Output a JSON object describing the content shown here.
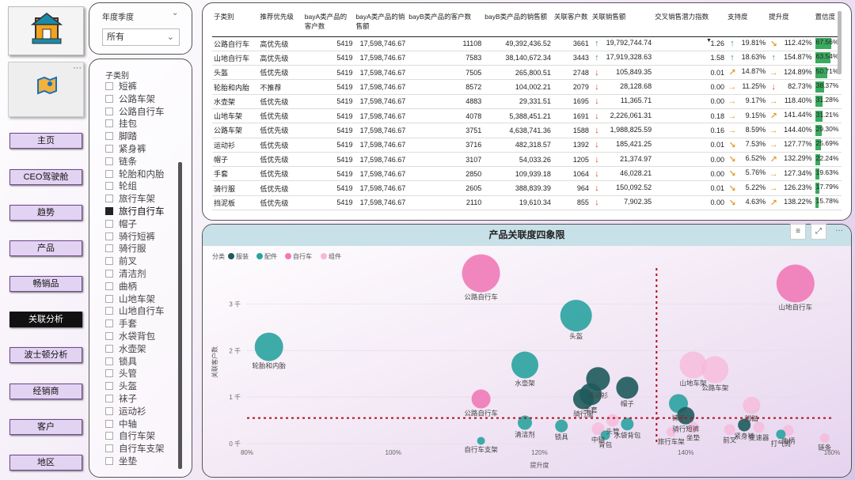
{
  "nav": {
    "items": [
      "主页",
      "CEO驾驶舱",
      "趋势",
      "产品",
      "畅销品",
      "关联分析",
      "波士顿分析",
      "经销商",
      "客户",
      "地区"
    ],
    "active": "关联分析"
  },
  "filter": {
    "title": "年度季度",
    "value": "所有"
  },
  "category_slicer": {
    "title": "子类别",
    "items": [
      "短裤",
      "公路车架",
      "公路自行车",
      "挂包",
      "脚踏",
      "紧身裤",
      "链条",
      "轮胎和内胎",
      "轮组",
      "旅行车架",
      "旅行自行车",
      "帽子",
      "骑行短裤",
      "骑行服",
      "前叉",
      "清洁剂",
      "曲柄",
      "山地车架",
      "山地自行车",
      "手套",
      "水袋背包",
      "水壶架",
      "锁具",
      "头管",
      "头盔",
      "袜子",
      "运动衫",
      "中轴",
      "自行车架",
      "自行车支架",
      "坐垫"
    ],
    "checked": "旅行自行车"
  },
  "table": {
    "headers": [
      "子类别",
      "推荐优先级",
      "bayA类产品的客户数",
      "bayA类产品的销售额",
      "bayB类产品的客户数",
      "bayB类产品的销售额",
      "关联客户数",
      "关联销售额",
      "交叉销售潜力指数",
      "支持度",
      "提升度",
      "置信度"
    ],
    "rows": [
      [
        "公路自行车",
        "高优先级",
        "5419",
        "17,598,746.67",
        "11108",
        "49,392,436.52",
        "3661",
        "up",
        "19,792,744.74",
        "1.26",
        "up",
        "19.81%",
        "se",
        "112.42%",
        "67.56%"
      ],
      [
        "山地自行车",
        "高优先级",
        "5419",
        "17,598,746.67",
        "7583",
        "38,140,672.34",
        "3443",
        "up",
        "17,919,328.63",
        "1.58",
        "up",
        "18.63%",
        "up",
        "154.87%",
        "63.54%"
      ],
      [
        "头盔",
        "低优先级",
        "5419",
        "17,598,746.67",
        "7505",
        "265,800.51",
        "2748",
        "down",
        "105,849.35",
        "0.01",
        "ne",
        "14.87%",
        "rt",
        "124.89%",
        "50.71%"
      ],
      [
        "轮胎和内胎",
        "不推荐",
        "5419",
        "17,598,746.67",
        "8572",
        "104,002.21",
        "2079",
        "down",
        "28,128.68",
        "0.00",
        "rt",
        "11.25%",
        "down",
        "82.73%",
        "38.37%"
      ],
      [
        "水壶架",
        "低优先级",
        "5419",
        "17,598,746.67",
        "4883",
        "29,331.51",
        "1695",
        "down",
        "11,365.71",
        "0.00",
        "rt",
        "9.17%",
        "rt",
        "118.40%",
        "31.28%"
      ],
      [
        "山地车架",
        "低优先级",
        "5419",
        "17,598,746.67",
        "4078",
        "5,388,451.21",
        "1691",
        "down",
        "2,226,061.31",
        "0.18",
        "rt",
        "9.15%",
        "ne",
        "141.44%",
        "31.21%"
      ],
      [
        "公路车架",
        "低优先级",
        "5419",
        "17,598,746.67",
        "3751",
        "4,638,741.36",
        "1588",
        "down",
        "1,988,825.59",
        "0.16",
        "rt",
        "8.59%",
        "rt",
        "144.40%",
        "29.30%"
      ],
      [
        "运动衫",
        "低优先级",
        "5419",
        "17,598,746.67",
        "3716",
        "482,318.57",
        "1392",
        "down",
        "185,421.25",
        "0.01",
        "se",
        "7.53%",
        "rt",
        "127.77%",
        "25.69%"
      ],
      [
        "帽子",
        "低优先级",
        "5419",
        "17,598,746.67",
        "3107",
        "54,033.26",
        "1205",
        "down",
        "21,374.97",
        "0.00",
        "se",
        "6.52%",
        "ne",
        "132.29%",
        "22.24%"
      ],
      [
        "手套",
        "低优先级",
        "5419",
        "17,598,746.67",
        "2850",
        "109,939.18",
        "1064",
        "down",
        "46,028.21",
        "0.00",
        "se",
        "5.76%",
        "rt",
        "127.34%",
        "19.63%"
      ],
      [
        "骑行服",
        "低优先级",
        "5419",
        "17,598,746.67",
        "2605",
        "388,839.39",
        "964",
        "down",
        "150,092.52",
        "0.01",
        "se",
        "5.22%",
        "rt",
        "126.23%",
        "17.79%"
      ],
      [
        "挡泥板",
        "低优先级",
        "5419",
        "17,598,746.67",
        "2110",
        "19,610.34",
        "855",
        "down",
        "7,902.35",
        "0.00",
        "se",
        "4.63%",
        "ne",
        "138.22%",
        "15.78%"
      ]
    ]
  },
  "arrow_icons": {
    "up": "↑",
    "down": "↓",
    "rt": "→",
    "ne": "↗",
    "se": "↘"
  },
  "colors": {
    "up": "#3a9a5c",
    "down": "#d84a2a",
    "warn": "#e0a030",
    "bar": "#3aaa5e"
  },
  "chart_toolbar": {
    "filter_icon": "filter-icon",
    "focus_icon": "focus-mode-icon",
    "more_icon": "more-options-icon"
  },
  "chart_data": {
    "type": "scatter",
    "title": "产品关联度四象限",
    "xlabel": "提升度",
    "ylabel": "关联客户数",
    "xlim": [
      0.8,
      1.6
    ],
    "ylim": [
      0,
      3.5
    ],
    "xticks": [
      "80%",
      "100%",
      "120%",
      "140%",
      "160%"
    ],
    "yticks": [
      "0 千",
      "1 千",
      "2 千",
      "3 千"
    ],
    "legend_title": "分类",
    "legend": [
      {
        "name": "服装",
        "color": "#1e5a5c"
      },
      {
        "name": "配件",
        "color": "#2aa3a0"
      },
      {
        "name": "自行车",
        "color": "#f07ab8"
      },
      {
        "name": "组件",
        "color": "#f7b7d8"
      }
    ],
    "ref_x": 1.36,
    "ref_y": 0.55,
    "points": [
      {
        "label": "公路自行车",
        "x": 1.12,
        "y": 3.66,
        "r": 24,
        "c": "自行车"
      },
      {
        "label": "山地自行车",
        "x": 1.55,
        "y": 3.44,
        "r": 24,
        "c": "自行车"
      },
      {
        "label": "头盔",
        "x": 1.25,
        "y": 2.75,
        "r": 20,
        "c": "配件"
      },
      {
        "label": "轮胎和内胎",
        "x": 0.83,
        "y": 2.08,
        "r": 18,
        "c": "配件"
      },
      {
        "label": "水壶架",
        "x": 1.18,
        "y": 1.69,
        "r": 17,
        "c": "配件"
      },
      {
        "label": "山地车架",
        "x": 1.41,
        "y": 1.69,
        "r": 17,
        "c": "组件"
      },
      {
        "label": "公路车架",
        "x": 1.44,
        "y": 1.59,
        "r": 17,
        "c": "组件"
      },
      {
        "label": "运动衫",
        "x": 1.28,
        "y": 1.39,
        "r": 15,
        "c": "服装"
      },
      {
        "label": "帽子",
        "x": 1.32,
        "y": 1.2,
        "r": 14,
        "c": "服装"
      },
      {
        "label": "手套",
        "x": 1.27,
        "y": 1.06,
        "r": 14,
        "c": "服装"
      },
      {
        "label": "骑行服",
        "x": 1.26,
        "y": 0.96,
        "r": 13,
        "c": "服装"
      },
      {
        "label": "公路自行车",
        "x": 1.12,
        "y": 0.96,
        "r": 12,
        "c": "自行车"
      },
      {
        "label": "袜子",
        "x": 1.39,
        "y": 0.86,
        "r": 12,
        "c": "配件"
      },
      {
        "label": "脚踏",
        "x": 1.49,
        "y": 0.82,
        "r": 11,
        "c": "组件"
      },
      {
        "label": "骑行短裤",
        "x": 1.4,
        "y": 0.6,
        "r": 11,
        "c": "服装"
      },
      {
        "label": "清洁剂",
        "x": 1.18,
        "y": 0.45,
        "r": 9,
        "c": "配件"
      },
      {
        "label": "锁具",
        "x": 1.23,
        "y": 0.38,
        "r": 8,
        "c": "配件"
      },
      {
        "label": "中轴",
        "x": 1.28,
        "y": 0.32,
        "r": 8,
        "c": "组件"
      },
      {
        "label": "水袋背包",
        "x": 1.32,
        "y": 0.42,
        "r": 8,
        "c": "配件"
      },
      {
        "label": "坐垫",
        "x": 1.41,
        "y": 0.35,
        "r": 7,
        "c": "组件"
      },
      {
        "label": "前叉",
        "x": 1.46,
        "y": 0.3,
        "r": 7,
        "c": "组件"
      },
      {
        "label": "紧身裤",
        "x": 1.48,
        "y": 0.4,
        "r": 8,
        "c": "服装"
      },
      {
        "label": "变速器",
        "x": 1.5,
        "y": 0.35,
        "r": 7,
        "c": "组件"
      },
      {
        "label": "曲柄",
        "x": 1.54,
        "y": 0.28,
        "r": 7,
        "c": "组件"
      },
      {
        "label": "打气筒",
        "x": 1.53,
        "y": 0.2,
        "r": 6,
        "c": "配件"
      },
      {
        "label": "链条",
        "x": 1.59,
        "y": 0.12,
        "r": 6,
        "c": "组件"
      },
      {
        "label": "自行车支架",
        "x": 1.12,
        "y": 0.06,
        "r": 5,
        "c": "配件"
      },
      {
        "label": "背包",
        "x": 1.29,
        "y": 0.18,
        "r": 6,
        "c": "配件"
      },
      {
        "label": "旅行车架",
        "x": 1.38,
        "y": 0.25,
        "r": 6,
        "c": "组件"
      },
      {
        "label": "头管",
        "x": 1.3,
        "y": 0.5,
        "r": 8,
        "c": "组件"
      }
    ]
  }
}
